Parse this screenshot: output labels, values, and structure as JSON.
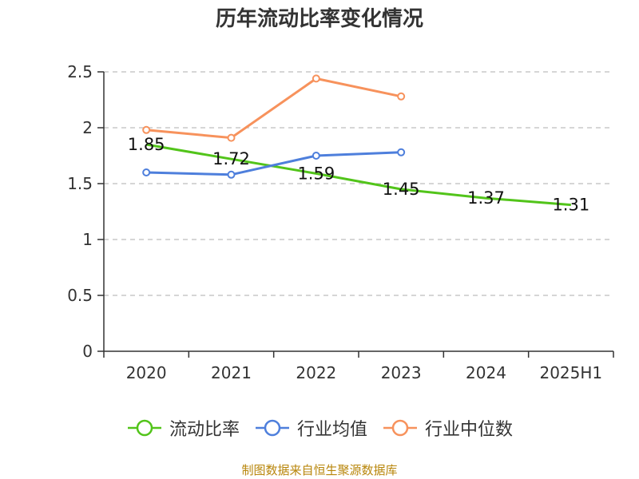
{
  "chart_data": {
    "type": "line",
    "title": "历年流动比率变化情况",
    "categories": [
      "2020",
      "2021",
      "2022",
      "2023",
      "2024",
      "2025H1"
    ],
    "ylim": [
      0,
      2.5
    ],
    "yticks": [
      "0",
      "0.5",
      "1",
      "1.5",
      "2",
      "2.5"
    ],
    "grid": true,
    "legend_position": "bottom",
    "series": [
      {
        "name": "流动比率",
        "color": "#52c41a",
        "values": [
          1.85,
          1.72,
          1.59,
          1.45,
          1.37,
          1.31
        ],
        "labels": [
          "1.85",
          "1.72",
          "1.59",
          "1.45",
          "1.37",
          "1.31"
        ],
        "show_markers": false
      },
      {
        "name": "行业均值",
        "color": "#4e7fdc",
        "values": [
          1.6,
          1.58,
          1.75,
          1.78,
          null,
          null
        ],
        "labels": [],
        "show_markers": true
      },
      {
        "name": "行业中位数",
        "color": "#f7925c",
        "values": [
          1.98,
          1.91,
          2.44,
          2.28,
          null,
          null
        ],
        "labels": [],
        "show_markers": true
      }
    ]
  },
  "source": "制图数据来自恒生聚源数据库"
}
